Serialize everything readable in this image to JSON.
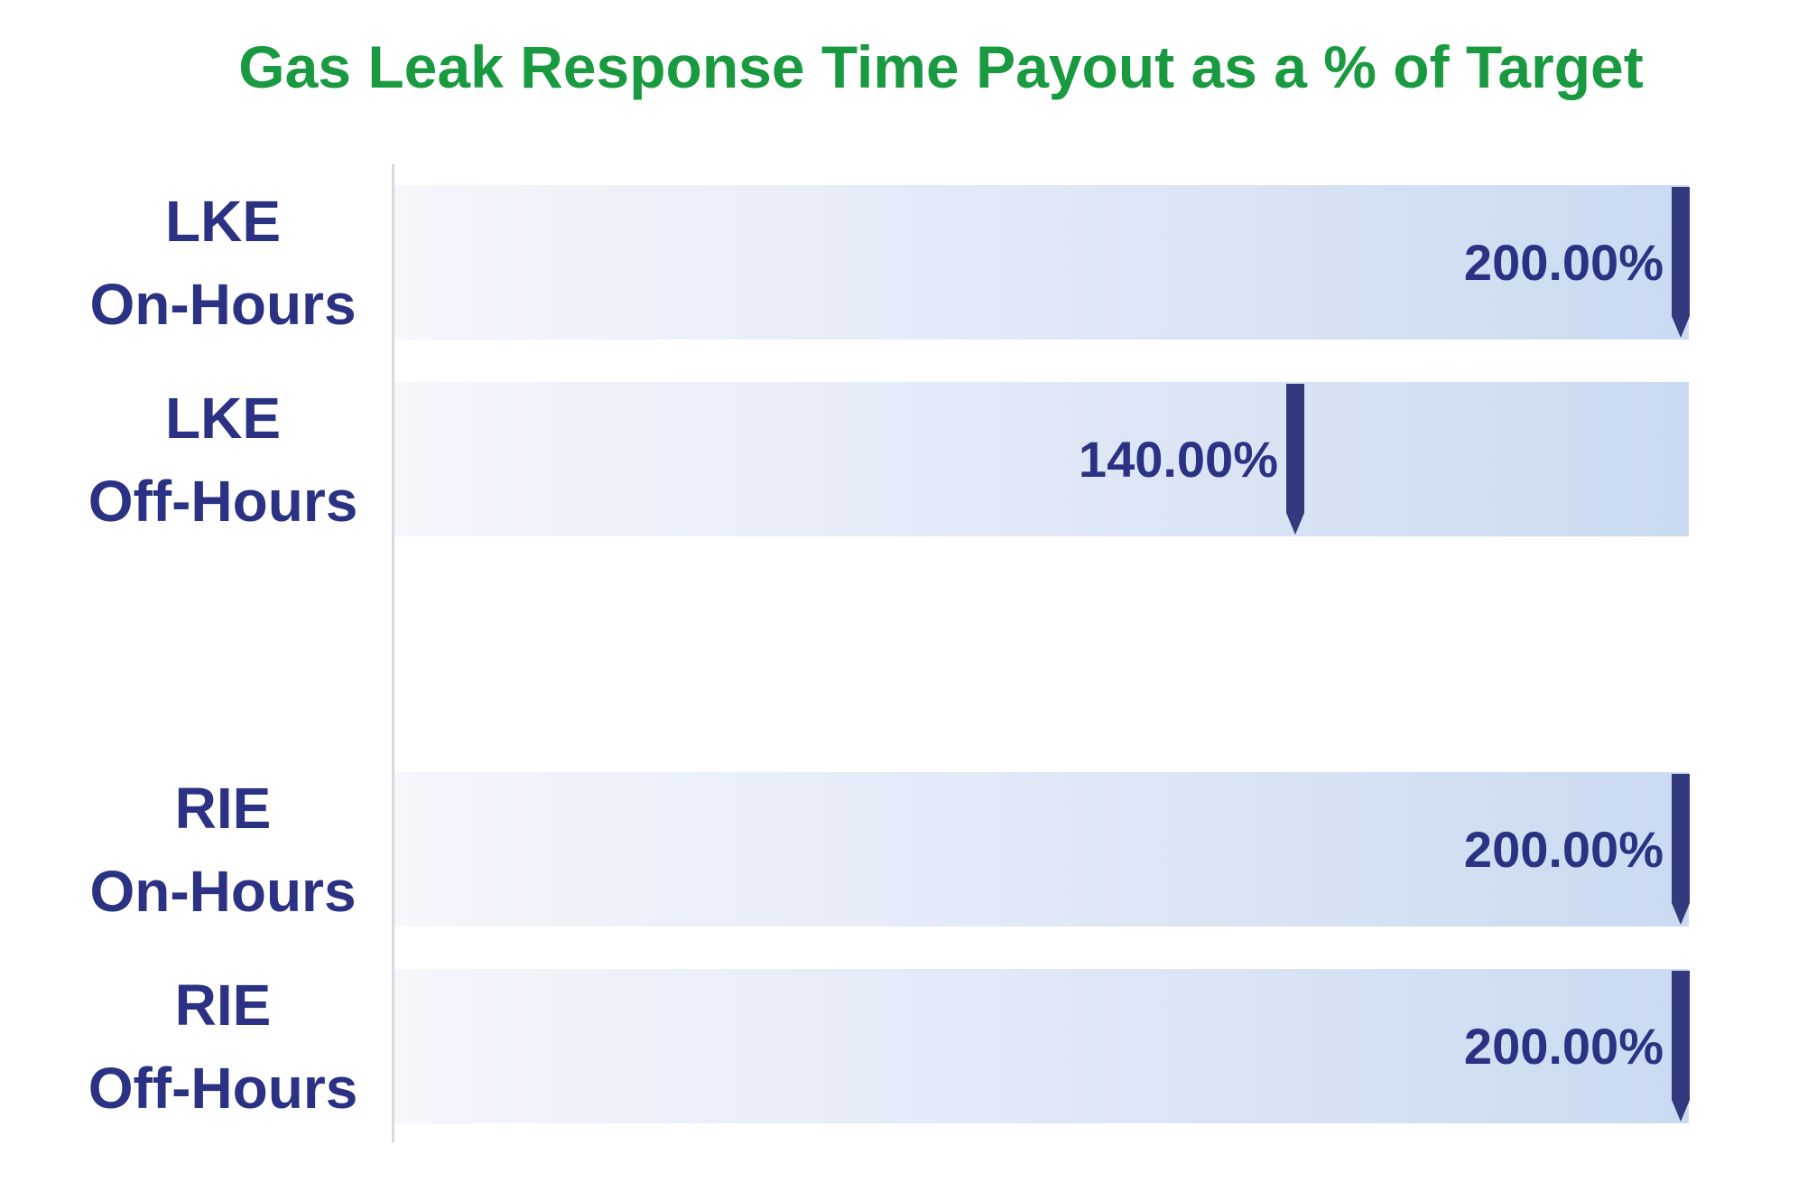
{
  "colors": {
    "green": "#1a9a40",
    "navy": "#2b3283",
    "pin": "#323a7d",
    "gradStart": "#f6f6fc",
    "gradEnd": "#cadaf1",
    "axis": "#d9d9d9"
  },
  "chart_data": {
    "type": "bar",
    "orientation": "horizontal",
    "title": "Gas Leak Response Time Payout as a % of Target",
    "categories": [
      "LKE On-Hours",
      "LKE Off-Hours",
      "RIE On-Hours",
      "RIE Off-Hours"
    ],
    "values": [
      200.0,
      140.0,
      200.0,
      200.0
    ],
    "value_labels": [
      "200.00%",
      "140.00%",
      "200.00%",
      "200.00%"
    ],
    "xlim": [
      0,
      200
    ],
    "xlabel": "",
    "ylabel": "",
    "legend": "none",
    "grid": false,
    "style_notes": "Each category is a full-width light lavender-to-blue gradient band; a dark navy downward-pointed pin marks the value position; the value label sits just left of the pin; one empty category slot between LKE Off-Hours and RIE On-Hours.",
    "rows": [
      {
        "label1": "LKE",
        "label2": "On-Hours",
        "value_label": "200.00%",
        "pct": 200
      },
      {
        "label1": "LKE",
        "label2": "Off-Hours",
        "value_label": "140.00%",
        "pct": 140
      },
      {
        "label1": "RIE",
        "label2": "On-Hours",
        "value_label": "200.00%",
        "pct": 200
      },
      {
        "label1": "RIE",
        "label2": "Off-Hours",
        "value_label": "200.00%",
        "pct": 200
      }
    ]
  }
}
